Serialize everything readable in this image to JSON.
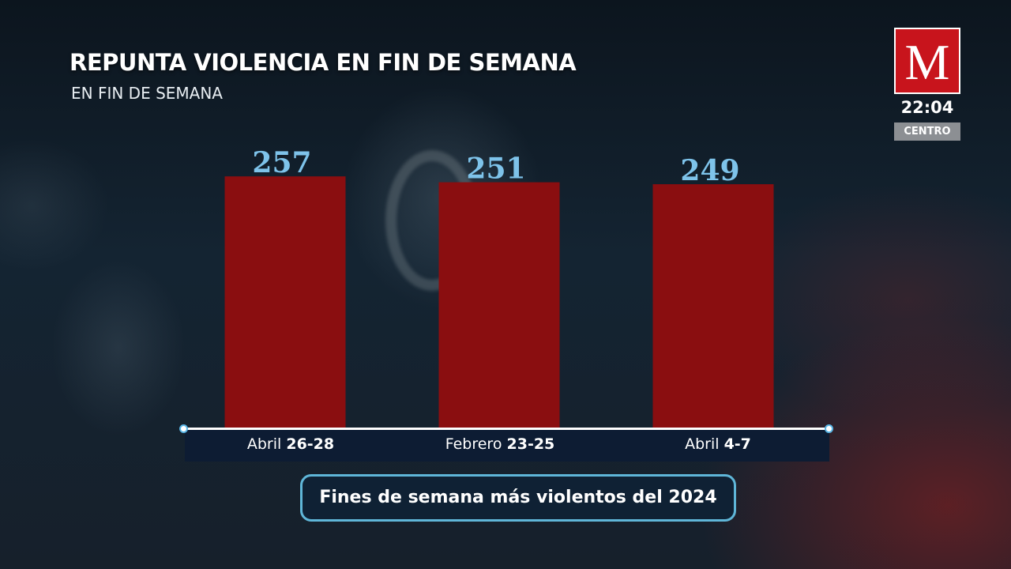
{
  "header": {
    "title": "REPUNTA VIOLENCIA EN FIN DE SEMANA",
    "subtitle": "EN FIN DE SEMANA"
  },
  "channel": {
    "logo_letter": "M",
    "time": "22:04",
    "zone": "CENTRO"
  },
  "caption": "Fines de semana más violentos del 2024",
  "colors": {
    "bar": "#8a0e10",
    "value_label": "#7ec3ea",
    "brand_red": "#c8141c",
    "caption_border": "#5fb6d8"
  },
  "chart_data": {
    "type": "bar",
    "title": "REPUNTA VIOLENCIA EN FIN DE SEMANA",
    "subtitle": "EN FIN DE SEMANA",
    "categories": [
      {
        "prefix": "Abril",
        "range": "26-28"
      },
      {
        "prefix": "Febrero",
        "range": "23-25"
      },
      {
        "prefix": "Abril",
        "range": "4-7"
      }
    ],
    "values": [
      257,
      251,
      249
    ],
    "data_labels": [
      "257",
      "251",
      "249"
    ],
    "xlabel": "",
    "ylabel": "",
    "ylim": [
      0,
      262
    ],
    "grid": false,
    "legend": "none"
  }
}
